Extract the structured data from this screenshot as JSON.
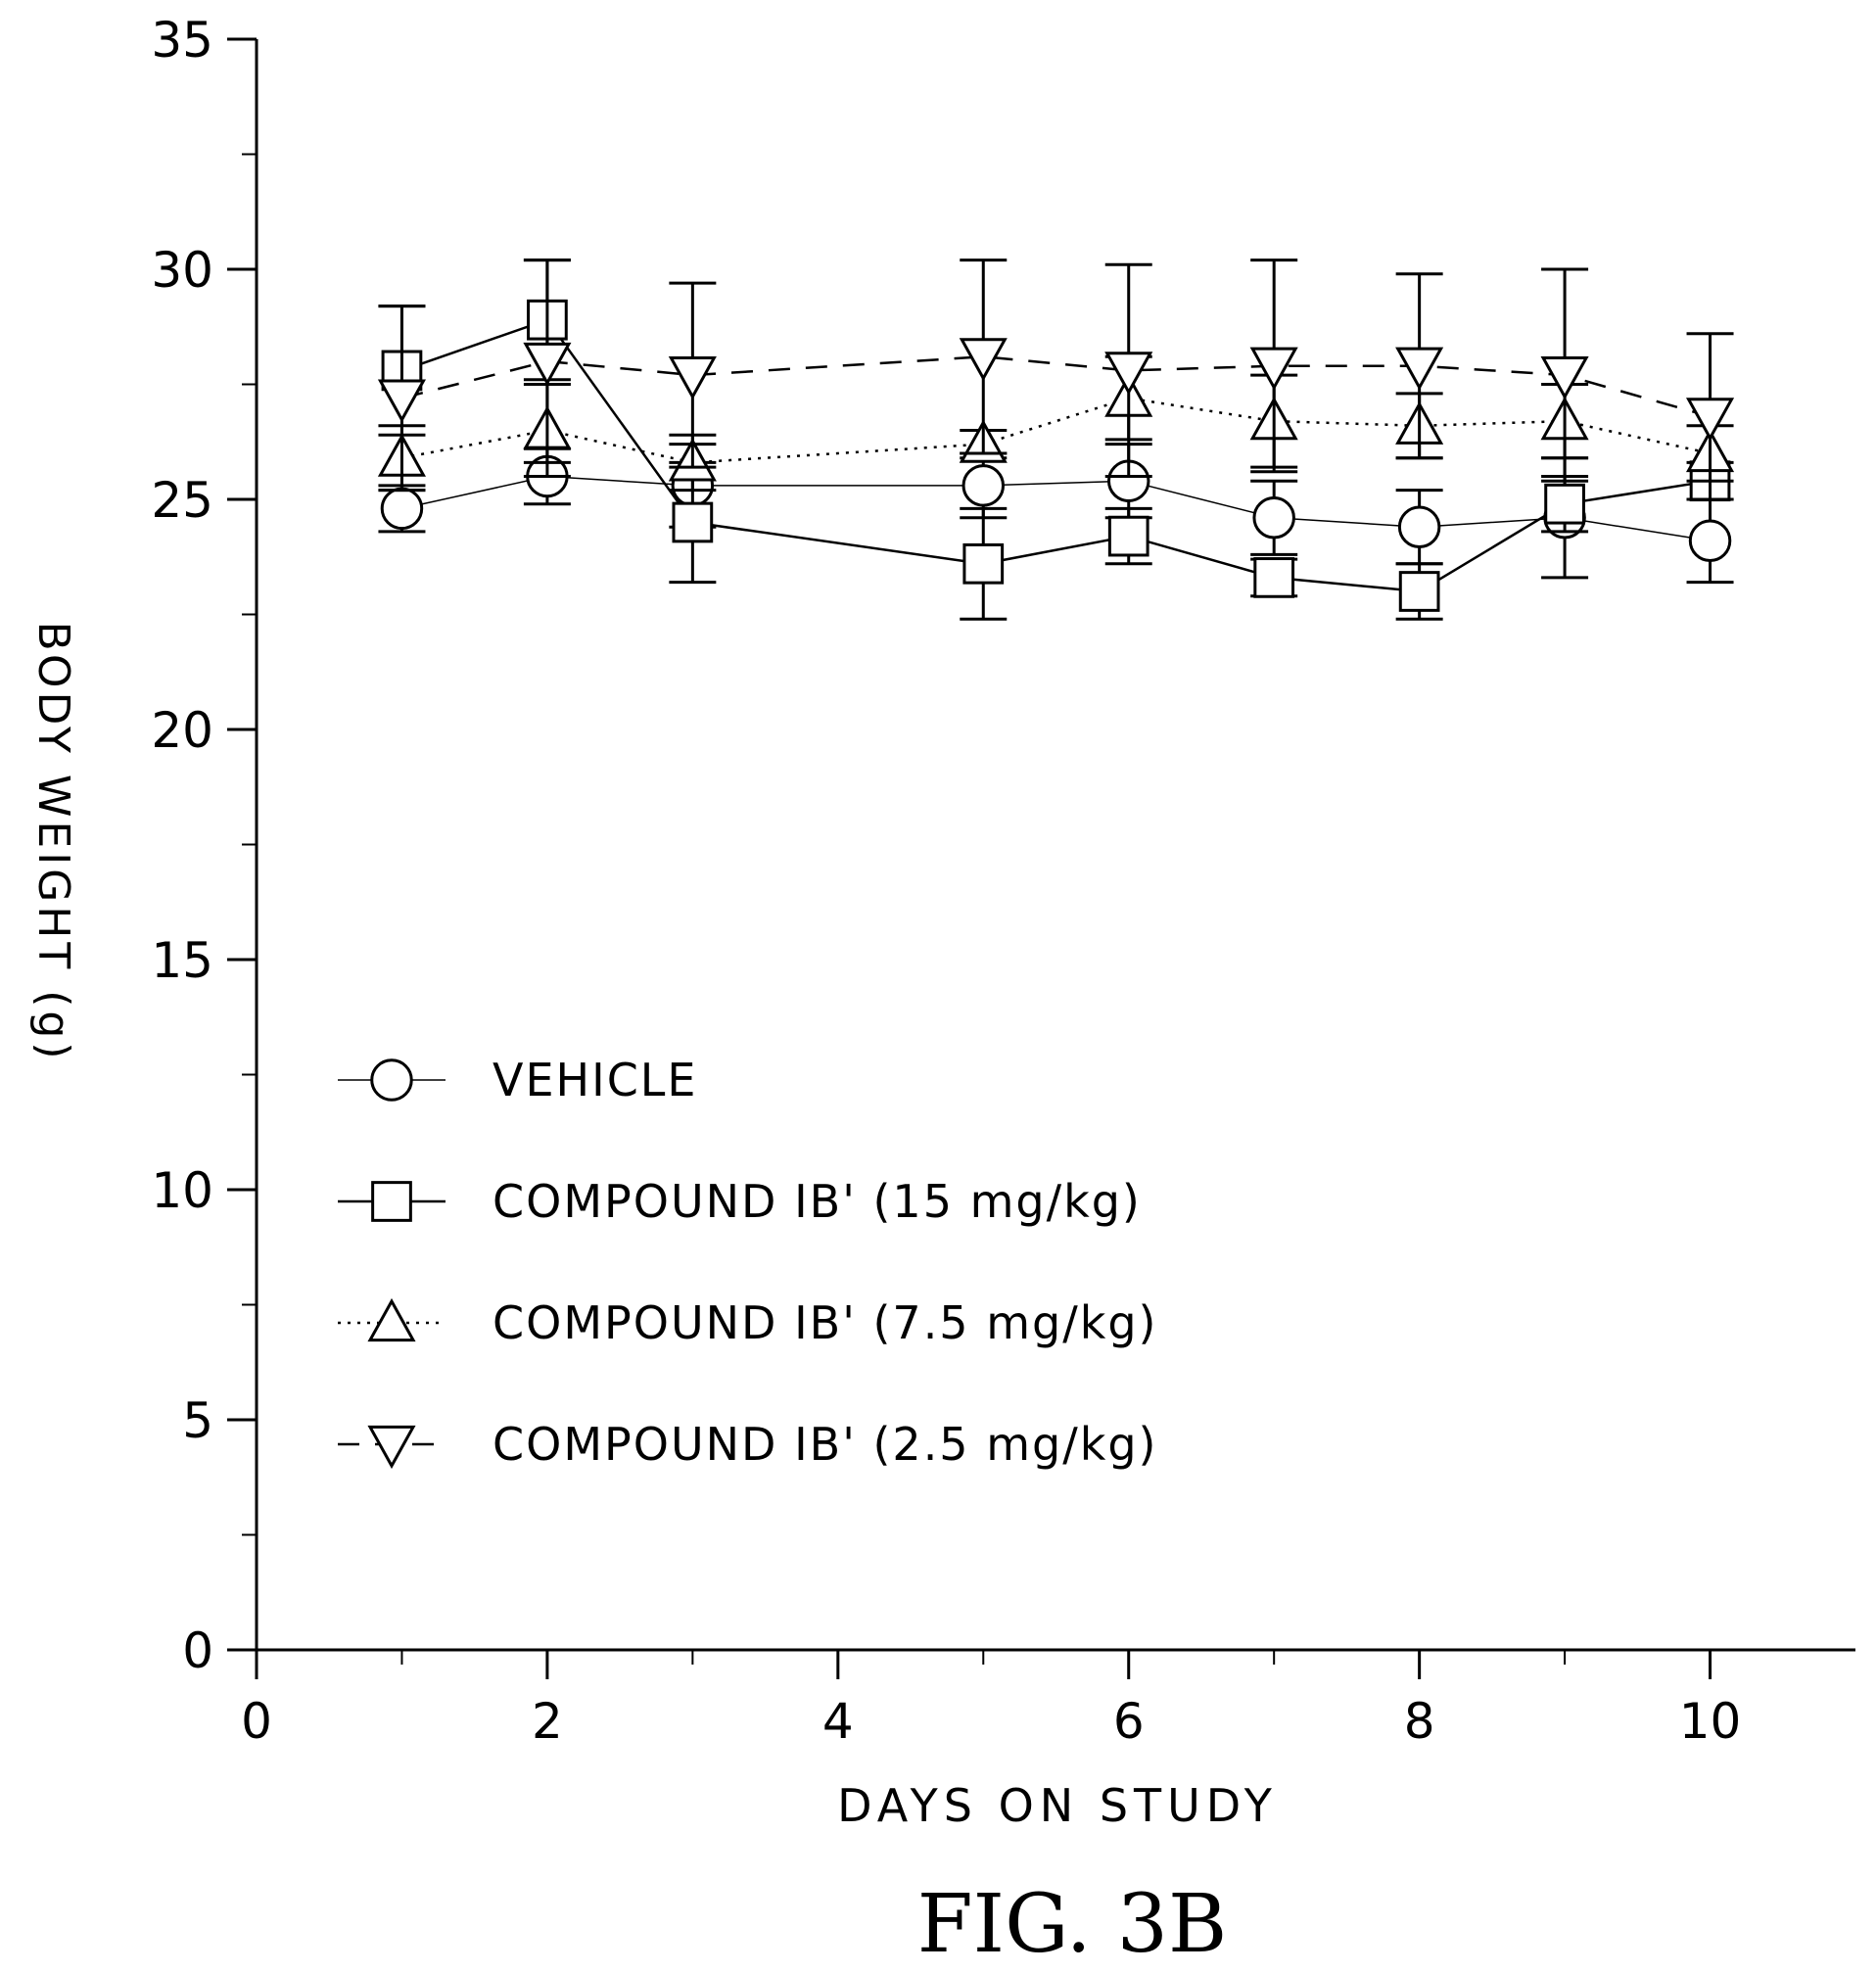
{
  "chart_data": {
    "type": "line",
    "xlabel": "DAYS ON STUDY",
    "ylabel": "BODY WEIGHT (g)",
    "xlim": [
      0,
      11
    ],
    "ylim": [
      0,
      35
    ],
    "xticks": [
      0,
      2,
      4,
      6,
      8,
      10
    ],
    "yticks": [
      0,
      5,
      10,
      15,
      20,
      25,
      30,
      35
    ],
    "grid": false,
    "legend_position": "lower-left",
    "caption": "FIG. 3B",
    "series": [
      {
        "name": "VEHICLE",
        "marker": "circle",
        "line_style": "solid-thin",
        "x": [
          1,
          2,
          3,
          5,
          6,
          7,
          8,
          9,
          10
        ],
        "y": [
          24.8,
          25.5,
          25.3,
          25.3,
          25.4,
          24.6,
          24.4,
          24.6,
          24.1
        ],
        "err": [
          0.5,
          0.6,
          0.9,
          0.7,
          0.8,
          0.8,
          0.8,
          1.3,
          0.9
        ]
      },
      {
        "name": "COMPOUND IB' (15 mg/kg)",
        "marker": "square",
        "line_style": "solid",
        "x": [
          1,
          2,
          3,
          5,
          6,
          7,
          8,
          9,
          10
        ],
        "y": [
          27.8,
          28.9,
          24.5,
          23.6,
          24.2,
          23.3,
          23.0,
          24.9,
          25.4
        ],
        "err": [
          1.4,
          1.3,
          1.3,
          1.2,
          0.6,
          0.4,
          0.6,
          0.6,
          0.4
        ]
      },
      {
        "name": "COMPOUND IB' (7.5 mg/kg)",
        "marker": "triangle-up",
        "line_style": "dotted",
        "x": [
          1,
          2,
          3,
          5,
          6,
          7,
          8,
          9,
          10
        ],
        "y": [
          25.9,
          26.5,
          25.8,
          26.2,
          27.2,
          26.7,
          26.6,
          26.7,
          26.0
        ],
        "err": [
          0.7,
          1.0,
          0.6,
          0.3,
          0.9,
          1.0,
          0.7,
          0.8,
          0.6
        ]
      },
      {
        "name": "COMPOUND IB' (2.5 mg/kg)",
        "marker": "triangle-down",
        "line_style": "dashed",
        "x": [
          1,
          2,
          3,
          5,
          6,
          7,
          8,
          9,
          10
        ],
        "y": [
          27.2,
          28.0,
          27.7,
          28.1,
          27.8,
          27.9,
          27.9,
          27.7,
          26.8
        ],
        "err": [
          2.0,
          2.2,
          2.0,
          2.1,
          2.3,
          2.3,
          2.0,
          2.3,
          1.8
        ]
      }
    ]
  },
  "icons": {
    "marker_symbols": [
      "circle-marker-icon",
      "square-marker-icon",
      "triangle-up-marker-icon",
      "triangle-down-marker-icon"
    ]
  },
  "colors": {
    "ink": "#000000",
    "background": "#ffffff"
  }
}
